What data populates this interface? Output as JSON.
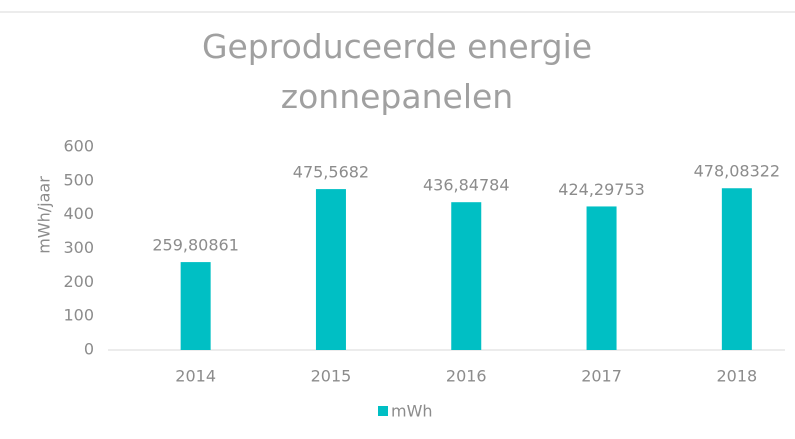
{
  "chart_data": {
    "type": "bar",
    "title": "Geproduceerde energie zonnepanelen",
    "y_label": "mWh/jaar",
    "categories": [
      "2014",
      "2015",
      "2016",
      "2017",
      "2018"
    ],
    "series": [
      {
        "name": "mWh",
        "color": "#00BFC4",
        "values": [
          259.80861,
          475.5682,
          436.84784,
          424.29753,
          478.08322
        ],
        "value_labels": [
          "259,80861",
          "475,5682",
          "436,84784",
          "424,29753",
          "478,08322"
        ]
      }
    ],
    "ylim": [
      0,
      600
    ],
    "yticks": [
      0,
      100,
      200,
      300,
      400,
      500,
      600
    ],
    "grid": false,
    "legend": "bottom"
  }
}
